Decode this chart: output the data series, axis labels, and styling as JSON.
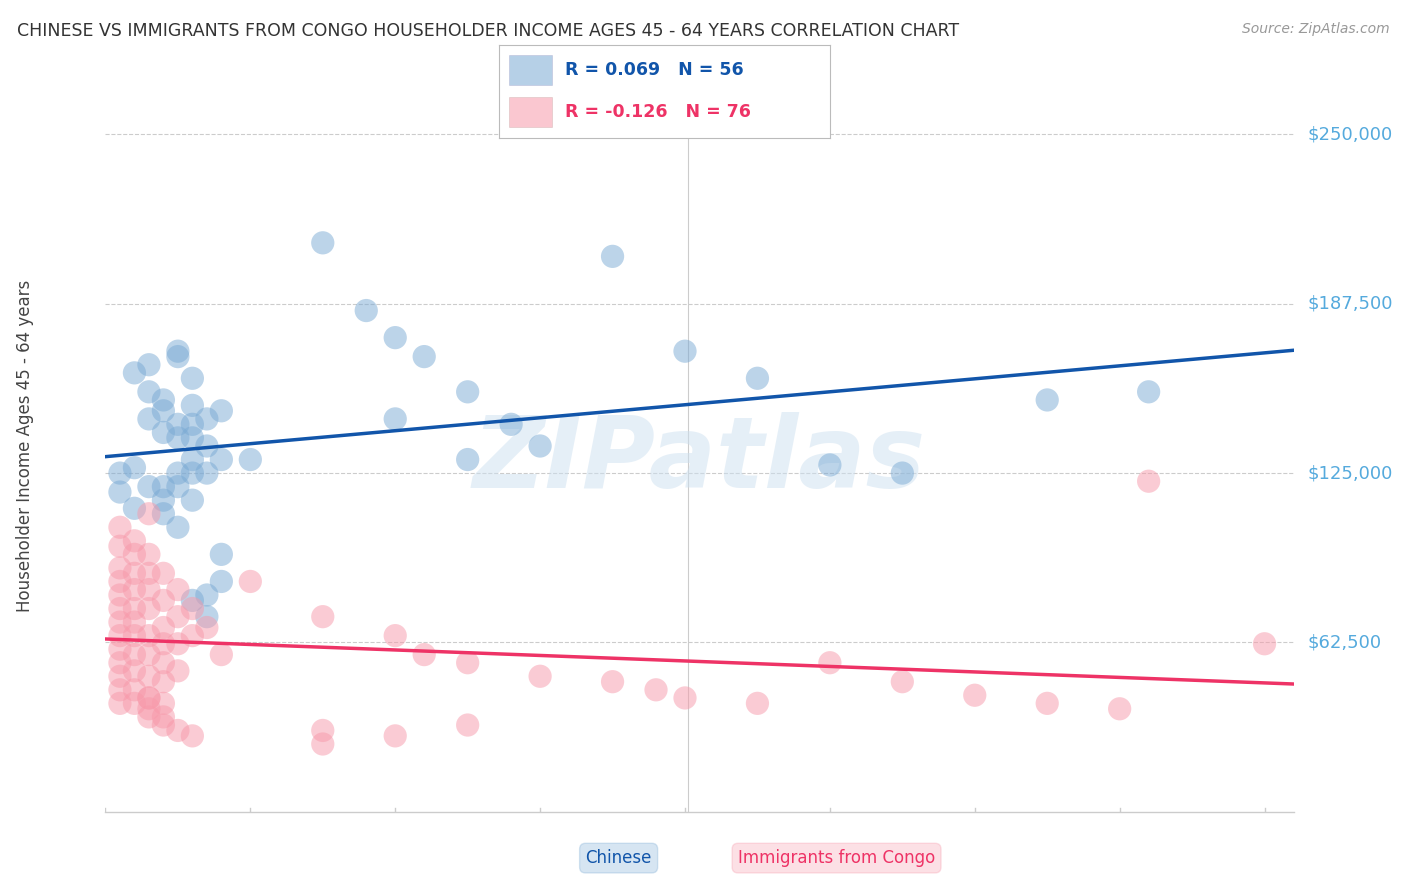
{
  "title": "CHINESE VS IMMIGRANTS FROM CONGO HOUSEHOLDER INCOME AGES 45 - 64 YEARS CORRELATION CHART",
  "source": "Source: ZipAtlas.com",
  "ylabel": "Householder Income Ages 45 - 64 years",
  "ytick_labels": [
    "$62,500",
    "$125,000",
    "$187,500",
    "$250,000"
  ],
  "ytick_values": [
    62500,
    125000,
    187500,
    250000
  ],
  "ymin": 0,
  "ymax": 270000,
  "xmin": 0.0,
  "xmax": 0.082,
  "blue_scatter_color": "#7aaad4",
  "pink_scatter_color": "#f799aa",
  "line_blue_color": "#1155aa",
  "line_pink_color": "#ee3366",
  "tick_label_color": "#55aadd",
  "title_color": "#333333",
  "source_color": "#999999",
  "watermark_color": "#cce0f0",
  "grid_color": "#cccccc",
  "legend_r_blue": "R = 0.069",
  "legend_n_blue": "N = 56",
  "legend_r_pink": "R = -0.126",
  "legend_n_pink": "N = 76",
  "bottom_legend_blue": "Chinese",
  "bottom_legend_pink": "Immigrants from Congo",
  "chinese_x": [
    0.001,
    0.001,
    0.002,
    0.002,
    0.002,
    0.003,
    0.003,
    0.003,
    0.004,
    0.004,
    0.004,
    0.004,
    0.004,
    0.005,
    0.005,
    0.005,
    0.005,
    0.005,
    0.005,
    0.006,
    0.006,
    0.006,
    0.006,
    0.006,
    0.006,
    0.006,
    0.007,
    0.007,
    0.007,
    0.007,
    0.008,
    0.008,
    0.008,
    0.01,
    0.015,
    0.018,
    0.02,
    0.02,
    0.022,
    0.025,
    0.025,
    0.028,
    0.03,
    0.035,
    0.04,
    0.045,
    0.05,
    0.055,
    0.065,
    0.072,
    0.003,
    0.004,
    0.005,
    0.006,
    0.007,
    0.008
  ],
  "chinese_y": [
    125000,
    118000,
    127000,
    112000,
    162000,
    120000,
    165000,
    145000,
    152000,
    148000,
    140000,
    120000,
    115000,
    170000,
    143000,
    138000,
    125000,
    120000,
    105000,
    160000,
    150000,
    138000,
    130000,
    125000,
    115000,
    78000,
    145000,
    135000,
    125000,
    72000,
    148000,
    130000,
    95000,
    130000,
    210000,
    185000,
    175000,
    145000,
    168000,
    155000,
    130000,
    143000,
    135000,
    205000,
    170000,
    160000,
    128000,
    125000,
    152000,
    155000,
    155000,
    110000,
    168000,
    143000,
    80000,
    85000
  ],
  "congo_x": [
    0.001,
    0.001,
    0.001,
    0.001,
    0.001,
    0.001,
    0.001,
    0.001,
    0.001,
    0.001,
    0.001,
    0.001,
    0.001,
    0.002,
    0.002,
    0.002,
    0.002,
    0.002,
    0.002,
    0.002,
    0.002,
    0.002,
    0.002,
    0.002,
    0.003,
    0.003,
    0.003,
    0.003,
    0.003,
    0.003,
    0.003,
    0.003,
    0.003,
    0.003,
    0.004,
    0.004,
    0.004,
    0.004,
    0.004,
    0.004,
    0.004,
    0.005,
    0.005,
    0.005,
    0.005,
    0.006,
    0.006,
    0.007,
    0.008,
    0.01,
    0.015,
    0.015,
    0.02,
    0.022,
    0.025,
    0.03,
    0.035,
    0.038,
    0.04,
    0.045,
    0.05,
    0.055,
    0.06,
    0.065,
    0.07,
    0.072,
    0.08,
    0.02,
    0.025,
    0.015,
    0.003,
    0.004,
    0.005,
    0.006,
    0.003,
    0.004
  ],
  "congo_y": [
    105000,
    98000,
    90000,
    85000,
    80000,
    75000,
    70000,
    65000,
    60000,
    55000,
    50000,
    45000,
    40000,
    100000,
    95000,
    88000,
    82000,
    75000,
    70000,
    65000,
    58000,
    52000,
    45000,
    40000,
    110000,
    95000,
    88000,
    82000,
    75000,
    65000,
    58000,
    50000,
    42000,
    35000,
    88000,
    78000,
    68000,
    62000,
    55000,
    48000,
    40000,
    82000,
    72000,
    62000,
    52000,
    75000,
    65000,
    68000,
    58000,
    85000,
    72000,
    25000,
    65000,
    58000,
    55000,
    50000,
    48000,
    45000,
    42000,
    40000,
    55000,
    48000,
    43000,
    40000,
    38000,
    122000,
    62000,
    28000,
    32000,
    30000,
    42000,
    35000,
    30000,
    28000,
    38000,
    32000
  ]
}
